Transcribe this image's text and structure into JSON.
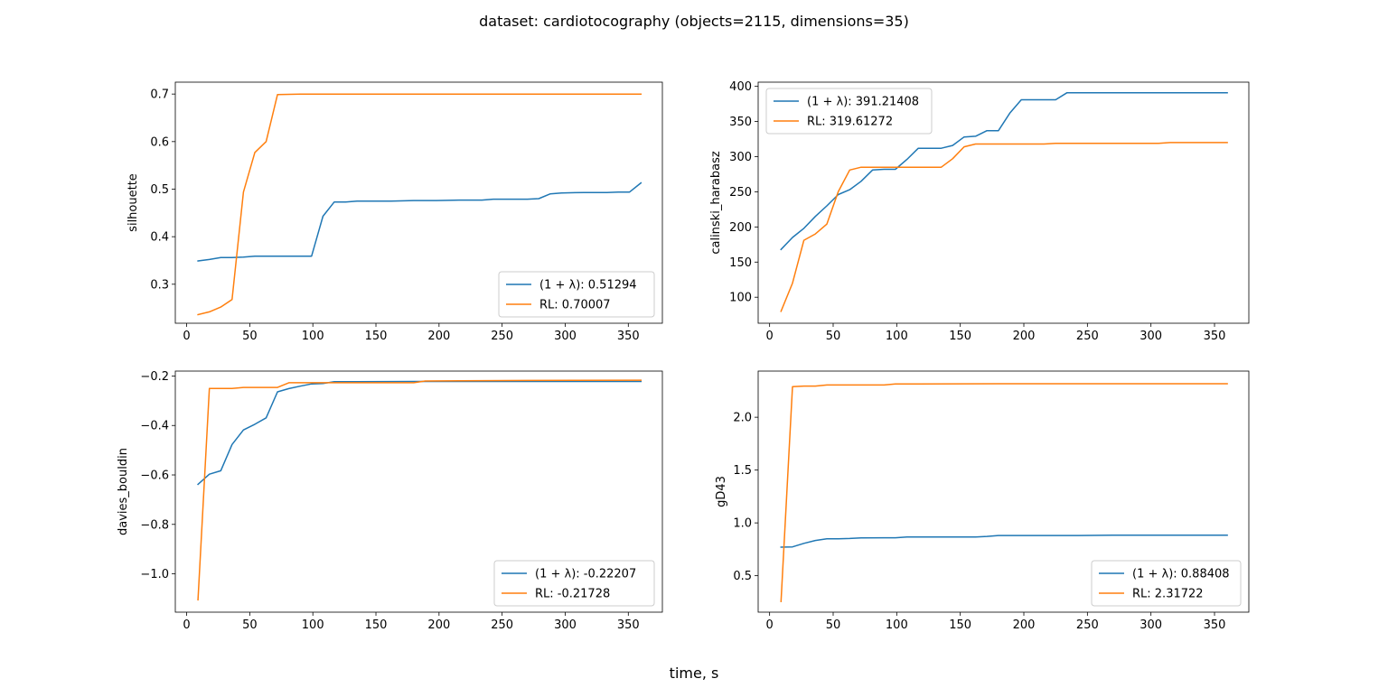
{
  "title": "dataset: cardiotocography (objects=2115, dimensions=35)",
  "xlabel": "time, s",
  "colors": {
    "s1": "#1f77b4",
    "s2": "#ff7f0e"
  },
  "chart_data": [
    {
      "type": "line",
      "ylabel": "silhouette",
      "xlim": [
        -9,
        377
      ],
      "ylim": [
        0.218,
        0.725
      ],
      "xticks": [
        0,
        50,
        100,
        150,
        200,
        250,
        300,
        350
      ],
      "xtick_labels": [
        "0",
        "50",
        "100",
        "150",
        "200",
        "250",
        "300",
        "350"
      ],
      "yticks": [
        0.3,
        0.4,
        0.5,
        0.6,
        0.7
      ],
      "ytick_labels": [
        "0.3",
        "0.4",
        "0.5",
        "0.6",
        "0.7"
      ],
      "legend_loc": "lower-right",
      "series": [
        {
          "name": "(1 + λ): 0.51294",
          "points": [
            [
              9,
              0.349
            ],
            [
              18,
              0.352
            ],
            [
              27,
              0.356
            ],
            [
              36,
              0.356
            ],
            [
              45,
              0.357
            ],
            [
              54,
              0.359
            ],
            [
              63,
              0.359
            ],
            [
              72,
              0.359
            ],
            [
              81,
              0.359
            ],
            [
              90,
              0.359
            ],
            [
              99,
              0.359
            ],
            [
              108,
              0.443
            ],
            [
              117,
              0.473
            ],
            [
              126,
              0.473
            ],
            [
              135,
              0.475
            ],
            [
              145,
              0.475
            ],
            [
              162,
              0.475
            ],
            [
              180,
              0.476
            ],
            [
              198,
              0.476
            ],
            [
              216,
              0.477
            ],
            [
              234,
              0.477
            ],
            [
              243,
              0.479
            ],
            [
              270,
              0.479
            ],
            [
              279,
              0.48
            ],
            [
              288,
              0.49
            ],
            [
              297,
              0.492
            ],
            [
              315,
              0.493
            ],
            [
              333,
              0.493
            ],
            [
              342,
              0.494
            ],
            [
              351,
              0.494
            ],
            [
              360,
              0.513
            ]
          ]
        },
        {
          "name": "RL: 0.70007",
          "points": [
            [
              9,
              0.236
            ],
            [
              18,
              0.242
            ],
            [
              27,
              0.252
            ],
            [
              36,
              0.268
            ],
            [
              45,
              0.494
            ],
            [
              54,
              0.577
            ],
            [
              63,
              0.6
            ],
            [
              72,
              0.699
            ],
            [
              90,
              0.7
            ],
            [
              117,
              0.7
            ],
            [
              180,
              0.7
            ],
            [
              270,
              0.7
            ],
            [
              360,
              0.7
            ]
          ]
        }
      ]
    },
    {
      "type": "line",
      "ylabel": "calinski_harabasz",
      "xlim": [
        -9,
        377
      ],
      "ylim": [
        63,
        406
      ],
      "xticks": [
        0,
        50,
        100,
        150,
        200,
        250,
        300,
        350
      ],
      "xtick_labels": [
        "0",
        "50",
        "100",
        "150",
        "200",
        "250",
        "300",
        "350"
      ],
      "yticks": [
        100,
        150,
        200,
        250,
        300,
        350,
        400
      ],
      "ytick_labels": [
        "100",
        "150",
        "200",
        "250",
        "300",
        "350",
        "400"
      ],
      "legend_loc": "upper-left",
      "series": [
        {
          "name": "(1 + λ): 391.21408",
          "points": [
            [
              9,
              168
            ],
            [
              18,
              185
            ],
            [
              27,
              198
            ],
            [
              36,
              215
            ],
            [
              45,
              230
            ],
            [
              54,
              246
            ],
            [
              63,
              253
            ],
            [
              72,
              265
            ],
            [
              81,
              281
            ],
            [
              90,
              282
            ],
            [
              99,
              282
            ],
            [
              108,
              296
            ],
            [
              117,
              312
            ],
            [
              126,
              312
            ],
            [
              135,
              312
            ],
            [
              144,
              316
            ],
            [
              153,
              328
            ],
            [
              162,
              329
            ],
            [
              171,
              337
            ],
            [
              180,
              337
            ],
            [
              189,
              362
            ],
            [
              198,
              381
            ],
            [
              207,
              381
            ],
            [
              225,
              381
            ],
            [
              234,
              391
            ],
            [
              270,
              391
            ],
            [
              315,
              391
            ],
            [
              360,
              391
            ]
          ]
        },
        {
          "name": "RL: 319.61272",
          "points": [
            [
              9,
              80
            ],
            [
              18,
              120
            ],
            [
              27,
              181
            ],
            [
              36,
              190
            ],
            [
              45,
              204
            ],
            [
              54,
              250
            ],
            [
              63,
              281
            ],
            [
              72,
              285
            ],
            [
              81,
              285
            ],
            [
              90,
              285
            ],
            [
              99,
              285
            ],
            [
              117,
              285
            ],
            [
              135,
              285
            ],
            [
              144,
              297
            ],
            [
              153,
              314
            ],
            [
              162,
              318
            ],
            [
              180,
              318
            ],
            [
              198,
              318
            ],
            [
              216,
              318
            ],
            [
              225,
              319
            ],
            [
              270,
              319
            ],
            [
              306,
              319
            ],
            [
              315,
              320
            ],
            [
              360,
              320
            ]
          ]
        }
      ]
    },
    {
      "type": "line",
      "ylabel": "davies_bouldin",
      "xlim": [
        -9,
        377
      ],
      "ylim": [
        -1.155,
        -0.18
      ],
      "xticks": [
        0,
        50,
        100,
        150,
        200,
        250,
        300,
        350
      ],
      "xtick_labels": [
        "0",
        "50",
        "100",
        "150",
        "200",
        "250",
        "300",
        "350"
      ],
      "yticks": [
        -1.0,
        -0.8,
        -0.6,
        -0.4,
        -0.2
      ],
      "ytick_labels": [
        "−1.0",
        "−0.8",
        "−0.6",
        "−0.4",
        "−0.2"
      ],
      "legend_loc": "lower-right",
      "series": [
        {
          "name": "(1 + λ): -0.22207",
          "points": [
            [
              9,
              -0.638
            ],
            [
              18,
              -0.597
            ],
            [
              27,
              -0.583
            ],
            [
              36,
              -0.477
            ],
            [
              45,
              -0.418
            ],
            [
              54,
              -0.395
            ],
            [
              63,
              -0.369
            ],
            [
              72,
              -0.264
            ],
            [
              81,
              -0.251
            ],
            [
              90,
              -0.241
            ],
            [
              99,
              -0.232
            ],
            [
              108,
              -0.23
            ],
            [
              117,
              -0.223
            ],
            [
              135,
              -0.223
            ],
            [
              180,
              -0.222
            ],
            [
              270,
              -0.222
            ],
            [
              360,
              -0.222
            ]
          ]
        },
        {
          "name": "RL: -0.21728",
          "points": [
            [
              9,
              -1.105
            ],
            [
              18,
              -0.25
            ],
            [
              27,
              -0.25
            ],
            [
              36,
              -0.25
            ],
            [
              45,
              -0.246
            ],
            [
              54,
              -0.246
            ],
            [
              63,
              -0.246
            ],
            [
              72,
              -0.246
            ],
            [
              81,
              -0.227
            ],
            [
              90,
              -0.227
            ],
            [
              108,
              -0.227
            ],
            [
              135,
              -0.227
            ],
            [
              180,
              -0.227
            ],
            [
              189,
              -0.22
            ],
            [
              216,
              -0.219
            ],
            [
              270,
              -0.218
            ],
            [
              360,
              -0.217
            ]
          ]
        }
      ]
    },
    {
      "type": "line",
      "ylabel": "gD43",
      "xlim": [
        -9,
        377
      ],
      "ylim": [
        0.155,
        2.437
      ],
      "xticks": [
        0,
        50,
        100,
        150,
        200,
        250,
        300,
        350
      ],
      "xtick_labels": [
        "0",
        "50",
        "100",
        "150",
        "200",
        "250",
        "300",
        "350"
      ],
      "yticks": [
        0.5,
        1.0,
        1.5,
        2.0
      ],
      "ytick_labels": [
        "0.5",
        "1.0",
        "1.5",
        "2.0"
      ],
      "legend_loc": "lower-right",
      "series": [
        {
          "name": "(1 + λ): 0.88408",
          "points": [
            [
              9,
              0.77
            ],
            [
              18,
              0.773
            ],
            [
              27,
              0.806
            ],
            [
              36,
              0.834
            ],
            [
              45,
              0.849
            ],
            [
              54,
              0.849
            ],
            [
              63,
              0.852
            ],
            [
              72,
              0.858
            ],
            [
              90,
              0.859
            ],
            [
              99,
              0.859
            ],
            [
              108,
              0.866
            ],
            [
              126,
              0.866
            ],
            [
              162,
              0.866
            ],
            [
              171,
              0.872
            ],
            [
              180,
              0.881
            ],
            [
              216,
              0.881
            ],
            [
              243,
              0.881
            ],
            [
              270,
              0.884
            ],
            [
              360,
              0.884
            ]
          ]
        },
        {
          "name": "RL: 2.31722",
          "points": [
            [
              9,
              0.256
            ],
            [
              18,
              2.29
            ],
            [
              27,
              2.295
            ],
            [
              36,
              2.295
            ],
            [
              45,
              2.305
            ],
            [
              54,
              2.305
            ],
            [
              63,
              2.305
            ],
            [
              72,
              2.305
            ],
            [
              90,
              2.305
            ],
            [
              99,
              2.315
            ],
            [
              117,
              2.315
            ],
            [
              180,
              2.317
            ],
            [
              270,
              2.317
            ],
            [
              360,
              2.317
            ]
          ]
        }
      ]
    }
  ]
}
